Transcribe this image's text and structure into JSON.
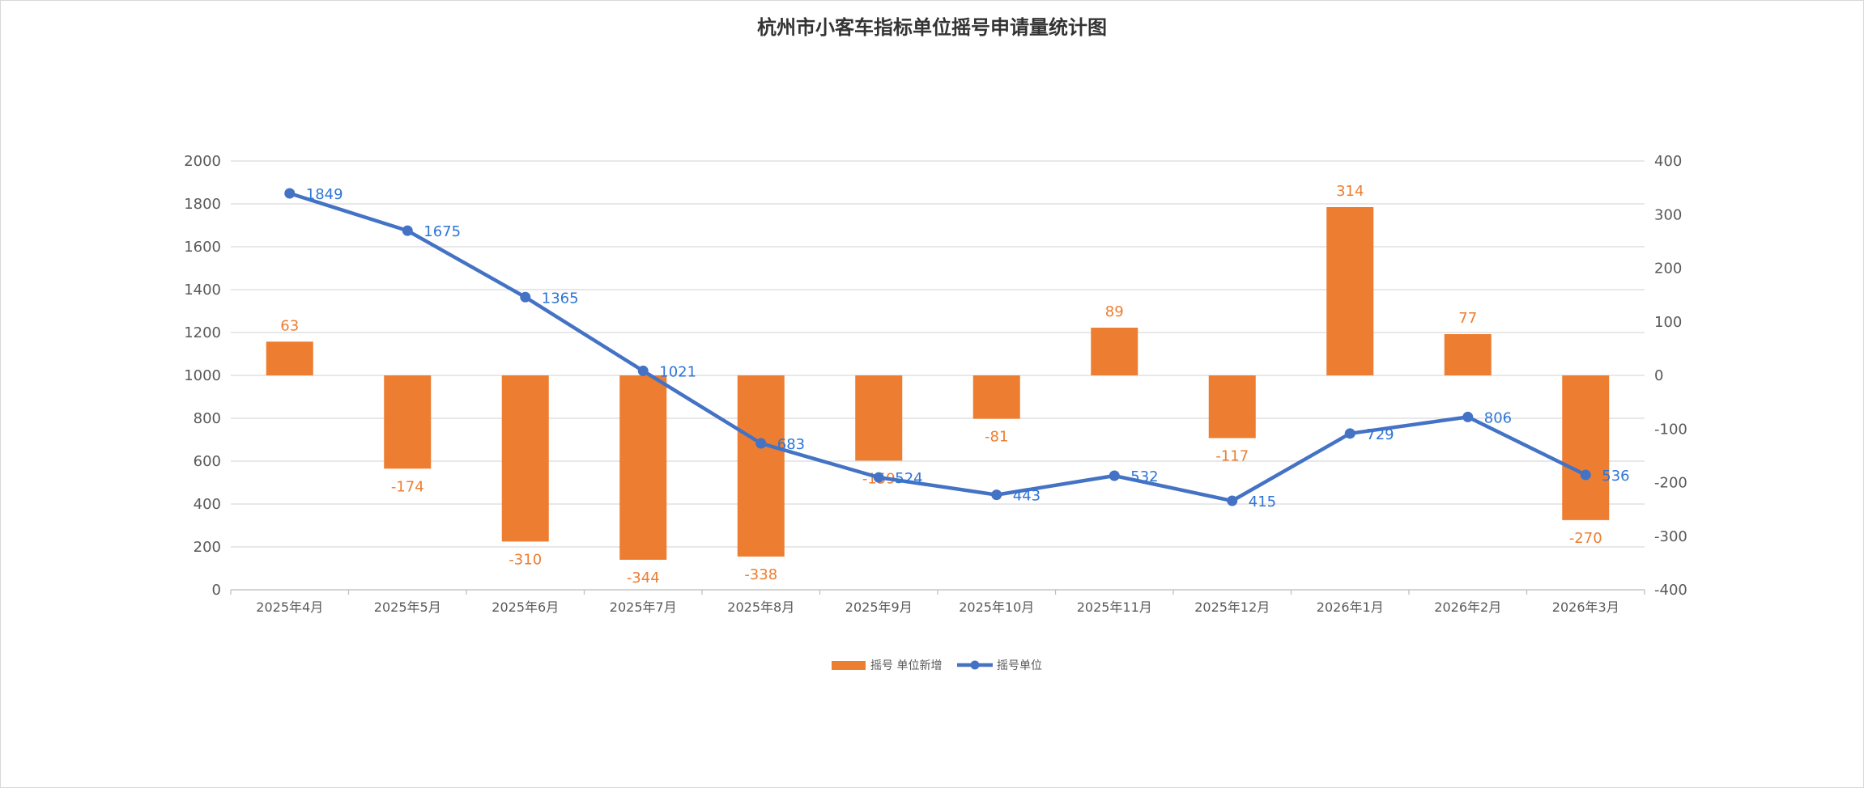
{
  "chart_data": {
    "type": "bar+line",
    "title": "杭州市小客车指标单位摇号申请量统计图",
    "categories": [
      "2025年4月",
      "2025年5月",
      "2025年6月",
      "2025年7月",
      "2025年8月",
      "2025年9月",
      "2025年10月",
      "2025年11月",
      "2025年12月",
      "2026年1月",
      "2026年2月",
      "2026年3月"
    ],
    "series": [
      {
        "name": "摇号 单位新增",
        "type": "bar",
        "axis": "right",
        "color": "#ED7D31",
        "values": [
          63,
          -174,
          -310,
          -344,
          -338,
          -159,
          -81,
          89,
          -117,
          314,
          77,
          -270
        ]
      },
      {
        "name": "摇号单位",
        "type": "line",
        "axis": "left",
        "color": "#4472C4",
        "values": [
          1849,
          1675,
          1365,
          1021,
          683,
          524,
          443,
          532,
          415,
          729,
          806,
          536
        ]
      }
    ],
    "y_left": {
      "min": 0,
      "max": 2000,
      "step": 200,
      "ticks": [
        "0",
        "200",
        "400",
        "600",
        "800",
        "1000",
        "1200",
        "1400",
        "1600",
        "1800",
        "2000"
      ]
    },
    "y_right": {
      "min": -400,
      "max": 400,
      "step": 100,
      "ticks": [
        "-400",
        "-300",
        "-200",
        "-100",
        "0",
        "100",
        "200",
        "300",
        "400"
      ]
    },
    "grid": true,
    "legend_position": "bottom"
  }
}
